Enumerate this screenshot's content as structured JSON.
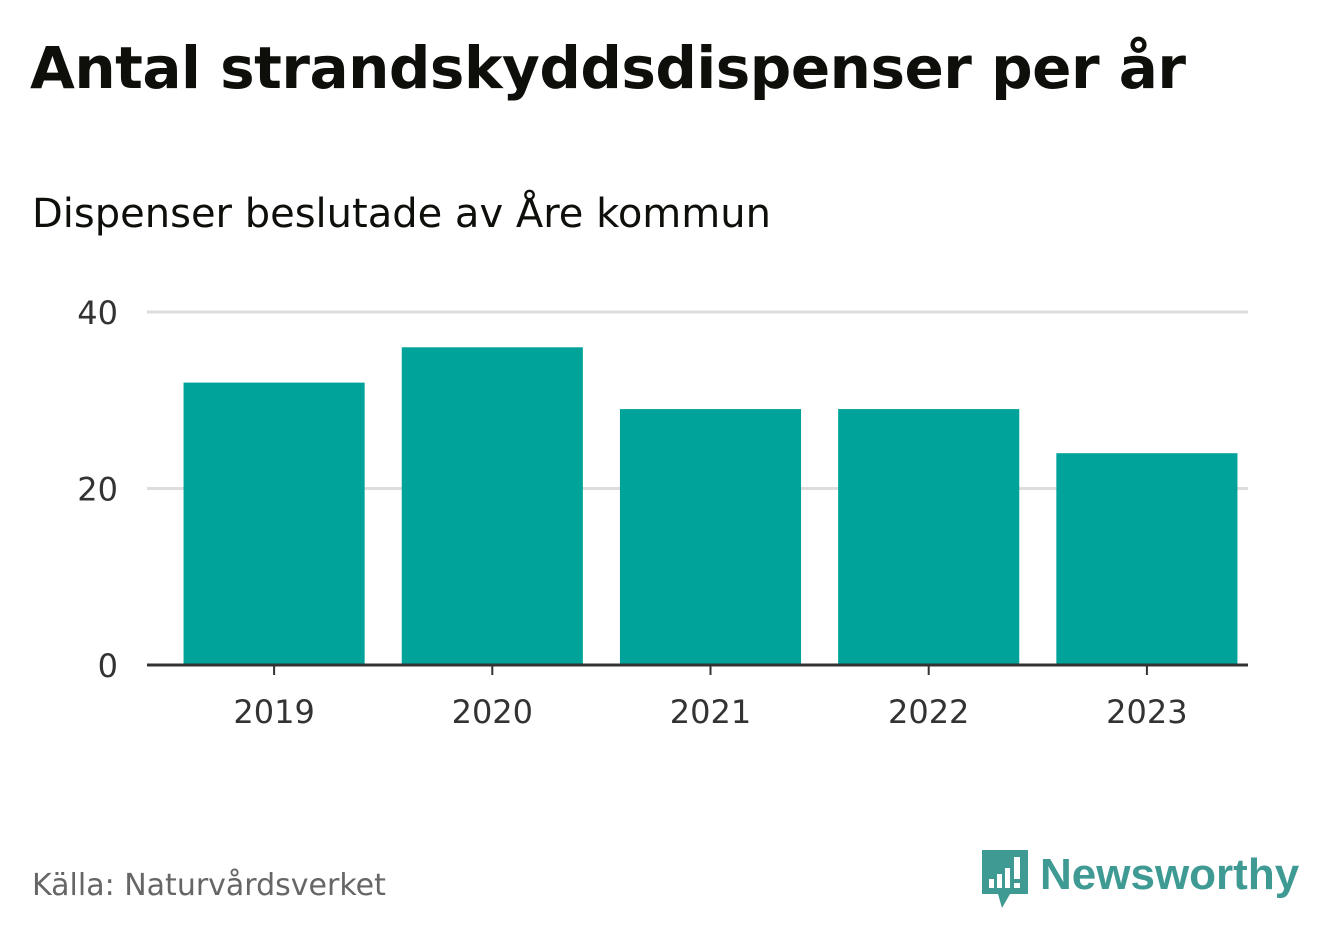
{
  "header": {
    "title": "Antal strandskyddsdispenser per år",
    "subtitle": "Dispenser beslutade av Åre kommun"
  },
  "footer": {
    "source": "Källa: Naturvårdsverket",
    "brand": "Newsworthy",
    "logo_icon": "newsworthy-logo-icon"
  },
  "colors": {
    "bar": "#00a39a",
    "grid": "#dddddd",
    "axis": "#333333",
    "brand": "#3f9a94"
  },
  "chart_data": {
    "type": "bar",
    "title": "Antal strandskyddsdispenser per år",
    "subtitle": "Dispenser beslutade av Åre kommun",
    "categories": [
      "2019",
      "2020",
      "2021",
      "2022",
      "2023"
    ],
    "values": [
      32,
      36,
      29,
      29,
      24
    ],
    "xlabel": "",
    "ylabel": "",
    "ylim": [
      0,
      40
    ],
    "yticks": [
      "0",
      "20",
      "40"
    ],
    "grid": true
  }
}
